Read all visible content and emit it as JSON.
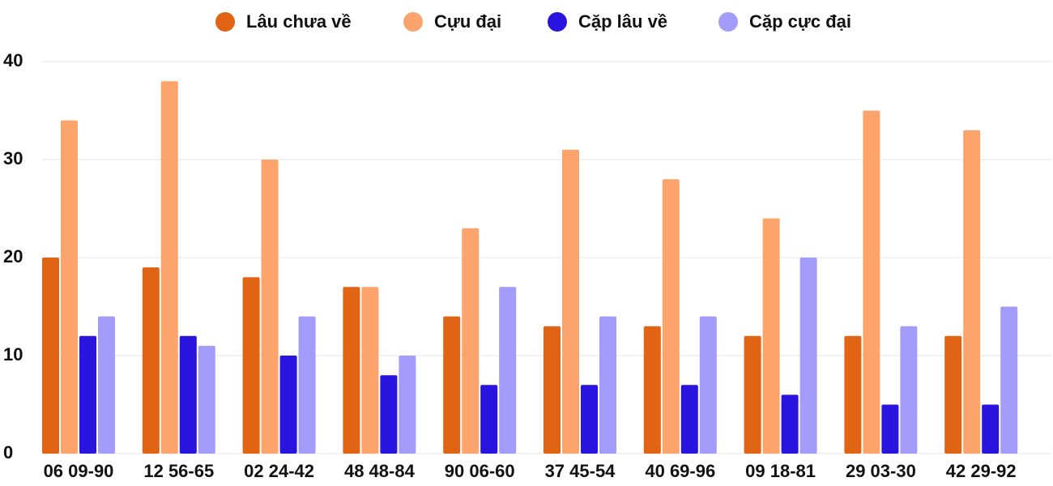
{
  "chart_data": {
    "type": "bar",
    "categories": [
      "06 09-90",
      "12 56-65",
      "02 24-42",
      "48 48-84",
      "90 06-60",
      "37 45-54",
      "40 69-96",
      "09 18-81",
      "29 03-30",
      "42 29-92"
    ],
    "series": [
      {
        "name": "Lâu chưa về",
        "color": "#e06414",
        "values": [
          20,
          19,
          18,
          17,
          14,
          13,
          13,
          12,
          12,
          12
        ]
      },
      {
        "name": "Cựu đại",
        "color": "#fda46c",
        "values": [
          34,
          38,
          30,
          17,
          23,
          31,
          28,
          24,
          35,
          33
        ]
      },
      {
        "name": "Cặp lâu về",
        "color": "#2a14e0",
        "values": [
          12,
          12,
          10,
          8,
          7,
          7,
          7,
          6,
          5,
          5
        ]
      },
      {
        "name": "Cặp cực đại",
        "color": "#a49cfb",
        "values": [
          14,
          11,
          14,
          10,
          17,
          14,
          14,
          20,
          13,
          15
        ]
      }
    ],
    "ylim": [
      0,
      40
    ],
    "yticks": [
      0,
      10,
      20,
      30,
      40
    ],
    "grid": true,
    "legend": "top"
  }
}
